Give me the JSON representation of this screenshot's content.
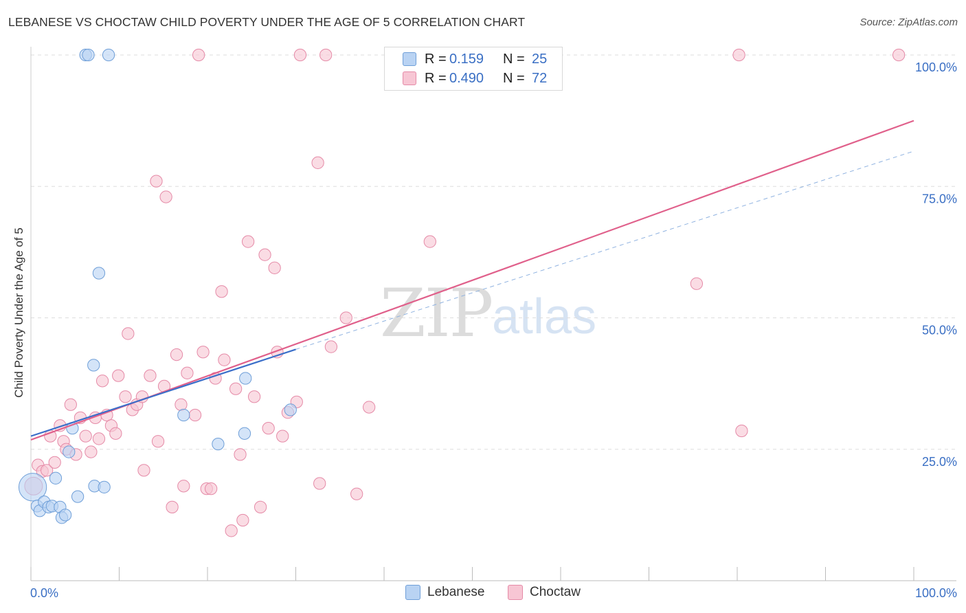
{
  "title": "LEBANESE VS CHOCTAW CHILD POVERTY UNDER THE AGE OF 5 CORRELATION CHART",
  "source": "Source: ZipAtlas.com",
  "watermark": {
    "zip": "ZIP",
    "atlas": "atlas"
  },
  "legend": {
    "rows": [
      {
        "r_label": "R =",
        "r_value": "0.159",
        "n_label": "N =",
        "n_value": "25"
      },
      {
        "r_label": "R =",
        "r_value": "0.490",
        "n_label": "N =",
        "n_value": "72"
      }
    ]
  },
  "bottom_legend": [
    "Lebanese",
    "Choctaw"
  ],
  "colors": {
    "lebanese_fill": "#b9d3f3",
    "lebanese_stroke": "#6f9fd8",
    "lebanese_line": "#3b6fc9",
    "choctaw_fill": "#f7c6d4",
    "choctaw_stroke": "#e58aa7",
    "choctaw_line": "#e0608b",
    "axis_text": "#3a6fc4",
    "grid": "#dddddd"
  },
  "chart_data": {
    "type": "scatter",
    "title": "LEBANESE VS CHOCTAW CHILD POVERTY UNDER THE AGE OF 5 CORRELATION CHART",
    "xlabel": "",
    "ylabel": "Child Poverty Under the Age of 5",
    "xlim": [
      0,
      100
    ],
    "ylim": [
      0,
      100
    ],
    "x_tick_labels": [
      "0.0%",
      "100.0%"
    ],
    "y_tick_labels": [
      "100.0%",
      "75.0%",
      "50.0%",
      "25.0%"
    ],
    "y_tick_values": [
      100,
      75,
      50,
      25
    ],
    "series": [
      {
        "name": "Lebanese",
        "R": 0.159,
        "N": 25,
        "points": [
          [
            0.2,
            17.8,
            28
          ],
          [
            0.7,
            14.2,
            12
          ],
          [
            1.0,
            13.3,
            12
          ],
          [
            1.5,
            15.0,
            12
          ],
          [
            2.0,
            14.0,
            12
          ],
          [
            2.4,
            14.2,
            12
          ],
          [
            2.8,
            19.5,
            12
          ],
          [
            3.3,
            14.0,
            12
          ],
          [
            3.5,
            12.0,
            12
          ],
          [
            3.9,
            12.5,
            12
          ],
          [
            4.3,
            24.5,
            12
          ],
          [
            4.7,
            29.0,
            12
          ],
          [
            5.3,
            16.0,
            12
          ],
          [
            6.2,
            100.0,
            12
          ],
          [
            6.5,
            100.0,
            12
          ],
          [
            7.1,
            41.0,
            12
          ],
          [
            7.2,
            18.0,
            12
          ],
          [
            7.7,
            58.5,
            12
          ],
          [
            8.3,
            17.8,
            12
          ],
          [
            8.8,
            100.0,
            12
          ],
          [
            17.3,
            31.5,
            12
          ],
          [
            21.2,
            26.0,
            12
          ],
          [
            24.2,
            28.0,
            12
          ],
          [
            24.3,
            38.5,
            12
          ],
          [
            29.4,
            32.5,
            12
          ]
        ],
        "trend": {
          "x": [
            0,
            30
          ],
          "y": [
            27.5,
            44.0
          ]
        },
        "trend_extension": {
          "x": [
            30,
            100
          ],
          "y": [
            44.0,
            81.7
          ]
        }
      },
      {
        "name": "Choctaw",
        "R": 0.49,
        "N": 72,
        "points": [
          [
            0.3,
            18.0,
            18
          ],
          [
            0.8,
            22.0,
            12
          ],
          [
            1.3,
            20.8,
            12
          ],
          [
            1.8,
            21.0,
            12
          ],
          [
            2.2,
            27.5,
            12
          ],
          [
            2.7,
            22.5,
            12
          ],
          [
            3.3,
            29.5,
            12
          ],
          [
            3.7,
            26.5,
            12
          ],
          [
            4.0,
            25.0,
            12
          ],
          [
            4.5,
            33.5,
            12
          ],
          [
            5.1,
            24.0,
            12
          ],
          [
            5.6,
            31.0,
            12
          ],
          [
            6.2,
            27.5,
            12
          ],
          [
            6.8,
            24.5,
            12
          ],
          [
            7.3,
            31.0,
            12
          ],
          [
            7.7,
            27.0,
            12
          ],
          [
            8.1,
            38.0,
            12
          ],
          [
            8.6,
            31.5,
            12
          ],
          [
            9.1,
            29.5,
            12
          ],
          [
            9.6,
            28.0,
            12
          ],
          [
            9.9,
            39.0,
            12
          ],
          [
            10.7,
            35.0,
            12
          ],
          [
            11.0,
            47.0,
            12
          ],
          [
            11.5,
            32.5,
            12
          ],
          [
            12.0,
            33.5,
            12
          ],
          [
            12.6,
            35.0,
            12
          ],
          [
            12.8,
            21.0,
            12
          ],
          [
            13.5,
            39.0,
            12
          ],
          [
            14.2,
            76.0,
            12
          ],
          [
            14.4,
            26.5,
            12
          ],
          [
            15.1,
            37.0,
            12
          ],
          [
            15.3,
            73.0,
            12
          ],
          [
            16.0,
            14.0,
            12
          ],
          [
            16.5,
            43.0,
            12
          ],
          [
            17.0,
            33.5,
            12
          ],
          [
            17.3,
            18.0,
            12
          ],
          [
            17.7,
            39.5,
            12
          ],
          [
            18.6,
            31.5,
            12
          ],
          [
            19.0,
            100.0,
            12
          ],
          [
            19.5,
            43.5,
            12
          ],
          [
            19.9,
            17.5,
            12
          ],
          [
            20.4,
            17.5,
            12
          ],
          [
            20.9,
            38.5,
            12
          ],
          [
            21.6,
            55.0,
            12
          ],
          [
            21.9,
            42.0,
            12
          ],
          [
            22.7,
            9.5,
            12
          ],
          [
            23.2,
            36.5,
            12
          ],
          [
            23.7,
            24.0,
            12
          ],
          [
            24.0,
            11.5,
            12
          ],
          [
            24.6,
            64.5,
            12
          ],
          [
            25.3,
            35.0,
            12
          ],
          [
            26.0,
            14.0,
            12
          ],
          [
            26.5,
            62.0,
            12
          ],
          [
            26.9,
            29.0,
            12
          ],
          [
            27.6,
            59.5,
            12
          ],
          [
            27.9,
            43.5,
            12
          ],
          [
            28.5,
            27.5,
            12
          ],
          [
            29.1,
            32.0,
            12
          ],
          [
            30.1,
            34.0,
            12
          ],
          [
            30.5,
            100.0,
            12
          ],
          [
            32.5,
            79.5,
            12
          ],
          [
            32.7,
            18.5,
            12
          ],
          [
            33.4,
            100.0,
            12
          ],
          [
            34.0,
            44.5,
            12
          ],
          [
            35.7,
            50.0,
            12
          ],
          [
            36.9,
            16.5,
            12
          ],
          [
            38.3,
            33.0,
            12
          ],
          [
            45.2,
            64.5,
            12
          ],
          [
            75.4,
            56.5,
            12
          ],
          [
            80.2,
            100.0,
            12
          ],
          [
            80.5,
            28.5,
            12
          ],
          [
            98.3,
            100.0,
            12
          ]
        ],
        "trend": {
          "x": [
            0,
            100
          ],
          "y": [
            26.8,
            87.5
          ]
        }
      }
    ]
  }
}
